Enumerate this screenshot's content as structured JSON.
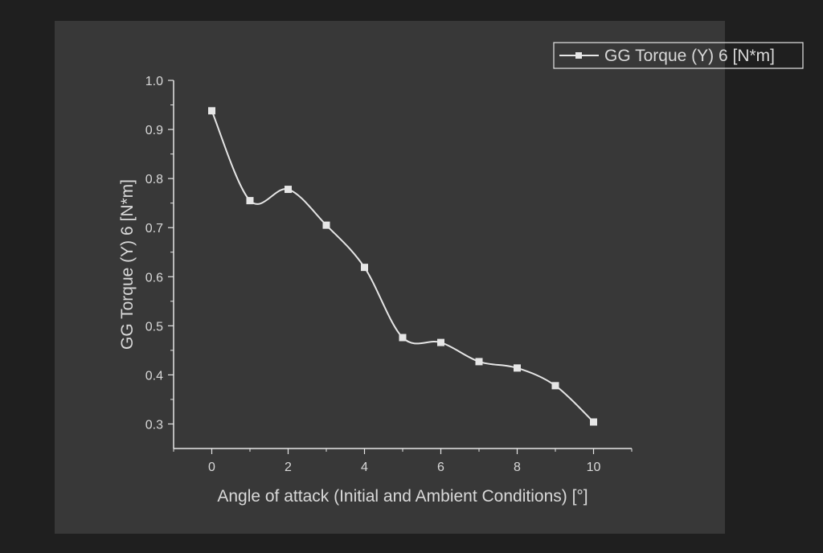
{
  "chart_data": {
    "type": "line",
    "title": "",
    "xlabel": "Angle of attack (Initial and Ambient Conditions) [°]",
    "ylabel": "GG Torque (Y) 6 [N*m]",
    "xlim": [
      -1,
      11
    ],
    "ylim": [
      0.25,
      1.0
    ],
    "x_ticks": [
      "0",
      "2",
      "4",
      "6",
      "8",
      "10"
    ],
    "y_ticks": [
      "0.3",
      "0.4",
      "0.5",
      "0.6",
      "0.7",
      "0.8",
      "0.9",
      "1.0"
    ],
    "x_tick_values": [
      0,
      2,
      4,
      6,
      8,
      10
    ],
    "y_tick_values": [
      0.3,
      0.4,
      0.5,
      0.6,
      0.7,
      0.8,
      0.9,
      1.0
    ],
    "grid": false,
    "legend_position": "top-right",
    "series": [
      {
        "name": "GG Torque (Y) 6 [N*m]",
        "marker": "square",
        "color": "#e6e6e6",
        "x": [
          0,
          1,
          2,
          3,
          4,
          5,
          6,
          7,
          8,
          9,
          10
        ],
        "y": [
          0.938,
          0.755,
          0.778,
          0.705,
          0.619,
          0.476,
          0.466,
          0.427,
          0.414,
          0.378,
          0.304
        ]
      }
    ]
  },
  "colors": {
    "page_background": "#1f1f1f",
    "plot_background": "#383838",
    "axis": "#e6e6e6",
    "text": "#d9d9d9"
  }
}
